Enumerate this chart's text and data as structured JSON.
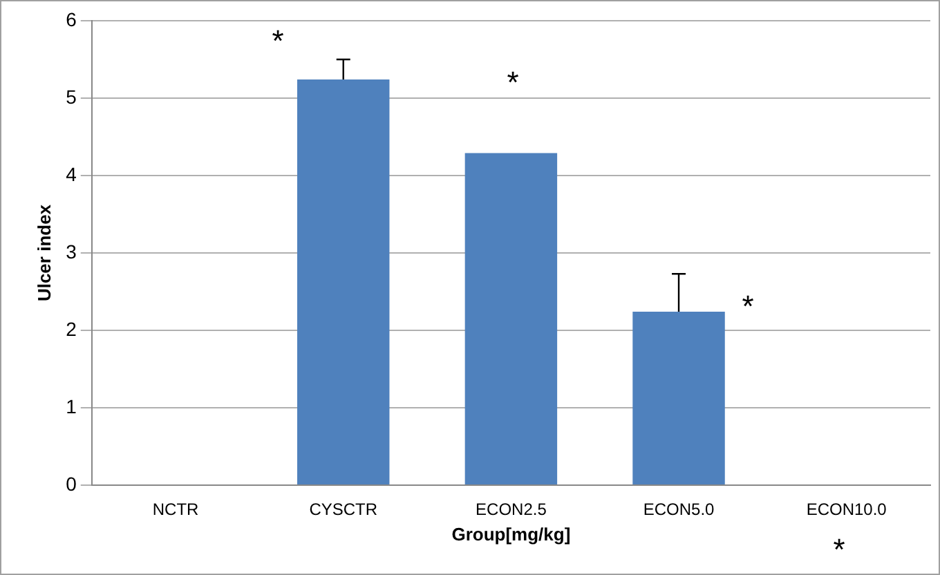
{
  "chart_data": {
    "type": "bar",
    "xlabel": "Group[mg/kg]",
    "ylabel": "Ulcer index",
    "categories": [
      "NCTR",
      "CYSCTR",
      "ECON2.5",
      "ECON5.0",
      "ECON10.0"
    ],
    "values": [
      0,
      5.24,
      4.29,
      2.24,
      0
    ],
    "errors": [
      null,
      0.26,
      null,
      0.49,
      null
    ],
    "color": "#4f81bd",
    "ylim": [
      0,
      6
    ],
    "yticks": [
      0,
      1,
      2,
      3,
      4,
      5,
      6
    ],
    "grid": "y",
    "legend": false,
    "annotations": [
      "*",
      "*",
      "*",
      "*"
    ]
  }
}
